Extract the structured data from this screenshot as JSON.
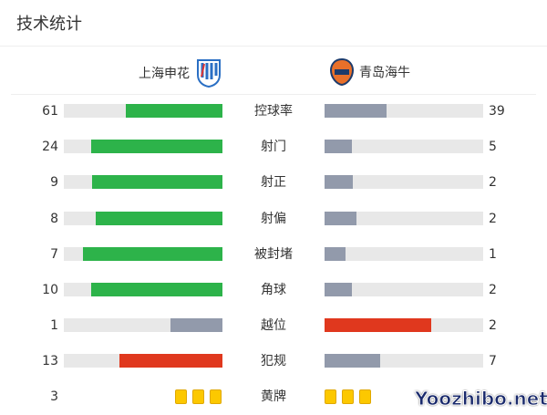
{
  "title": "技术统计",
  "home": {
    "name": "上海申花",
    "logo": "shenhua-crest"
  },
  "away": {
    "name": "青岛海牛",
    "logo": "hainiu-crest"
  },
  "colors": {
    "win": "#2db34a",
    "lose": "#929aab",
    "foul": "#e0381e",
    "track": "#e8e8e8",
    "card": "#fcc800"
  },
  "stats": [
    {
      "label": "控球率",
      "home": "61",
      "away": "39",
      "hf": 0.61,
      "af": 0.39,
      "hc": "win",
      "ac": "lose"
    },
    {
      "label": "射门",
      "home": "24",
      "away": "5",
      "hf": 0.83,
      "af": 0.17,
      "hc": "win",
      "ac": "lose"
    },
    {
      "label": "射正",
      "home": "9",
      "away": "2",
      "hf": 0.82,
      "af": 0.18,
      "hc": "win",
      "ac": "lose"
    },
    {
      "label": "射偏",
      "home": "8",
      "away": "2",
      "hf": 0.8,
      "af": 0.2,
      "hc": "win",
      "ac": "lose"
    },
    {
      "label": "被封堵",
      "home": "7",
      "away": "1",
      "hf": 0.88,
      "af": 0.13,
      "hc": "win",
      "ac": "lose"
    },
    {
      "label": "角球",
      "home": "10",
      "away": "2",
      "hf": 0.83,
      "af": 0.17,
      "hc": "win",
      "ac": "lose"
    },
    {
      "label": "越位",
      "home": "1",
      "away": "2",
      "hf": 0.33,
      "af": 0.67,
      "hc": "lose",
      "ac": "foul"
    },
    {
      "label": "犯规",
      "home": "13",
      "away": "7",
      "hf": 0.65,
      "af": 0.35,
      "hc": "foul",
      "ac": "lose"
    }
  ],
  "yellow": {
    "label": "黄牌",
    "home": "3",
    "home_count": 3,
    "away_count": 3
  },
  "watermark": "Yoozhibo.net"
}
